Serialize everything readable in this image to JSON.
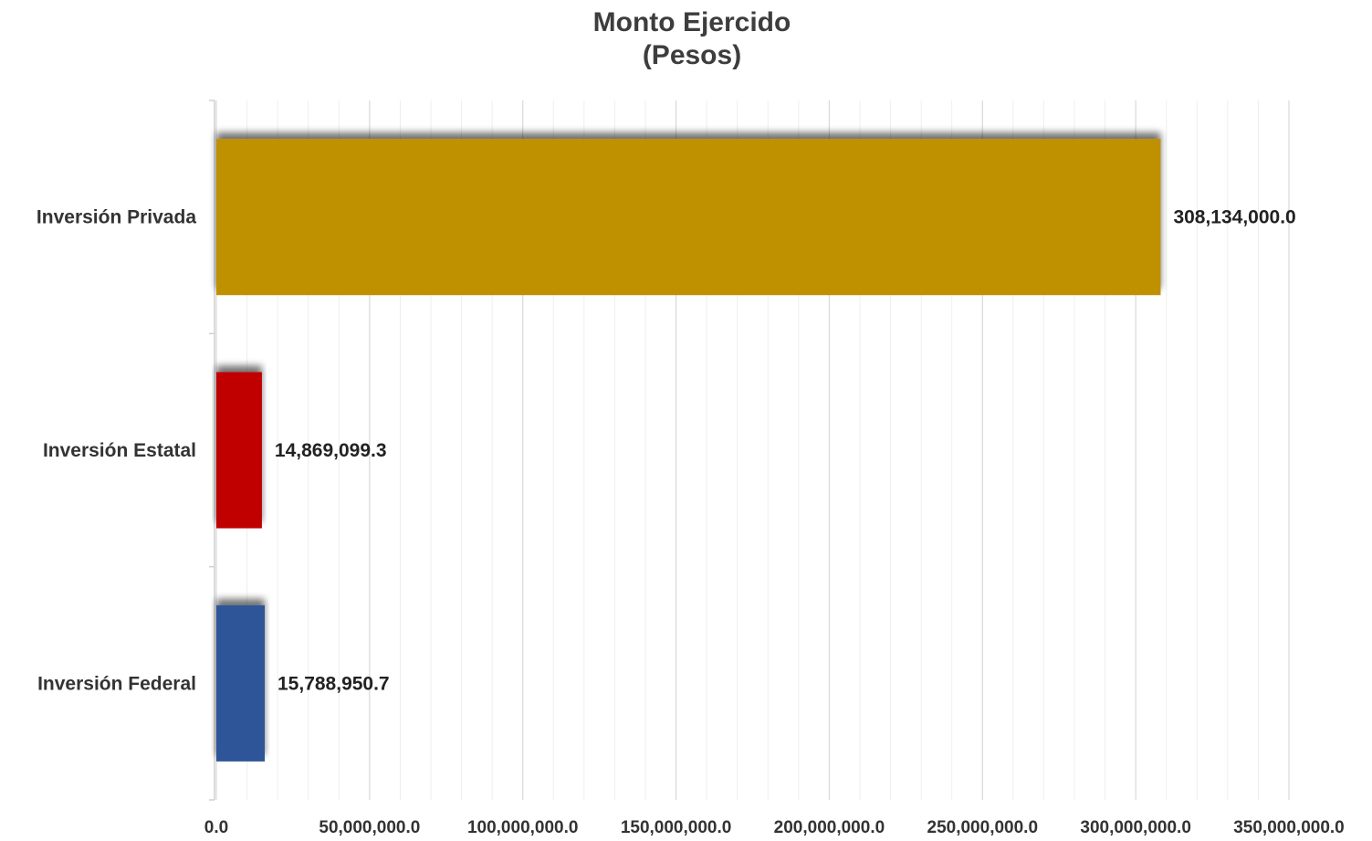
{
  "chart_data": {
    "type": "bar",
    "orientation": "horizontal",
    "title": [
      "Monto Ejercido",
      "(Pesos)"
    ],
    "categories": [
      "Inversión Privada",
      "Inversión Estatal",
      "Inversión Federal"
    ],
    "values": [
      308134000.0,
      14869099.3,
      15788950.7
    ],
    "value_labels": [
      "308,134,000.0",
      "14,869,099.3",
      "15,788,950.7"
    ],
    "colors": [
      "#bf9000",
      "#c00000",
      "#2f5597"
    ],
    "xlim": [
      0,
      350000000
    ],
    "xticks": [
      0,
      50000000,
      100000000,
      150000000,
      200000000,
      250000000,
      300000000,
      350000000
    ],
    "xtick_labels": [
      "0.0",
      "50,000,000.0",
      "100,000,000.0",
      "150,000,000.0",
      "200,000,000.0",
      "250,000,000.0",
      "300,000,000.0",
      "350,000,000.0"
    ],
    "minor_ticks_per_major": 5,
    "grid": "vertical",
    "legend": "none",
    "xlabel": "",
    "ylabel": ""
  }
}
